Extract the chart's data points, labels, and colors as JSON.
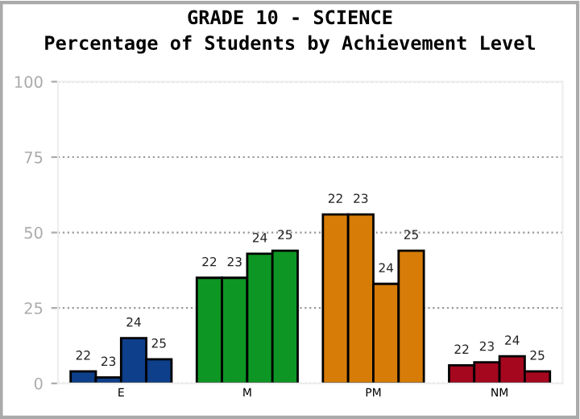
{
  "chart_data": {
    "type": "bar",
    "title": "GRADE 10 - SCIENCE",
    "subtitle": "Percentage of Students by Achievement Level",
    "categories": [
      "E",
      "M",
      "PM",
      "NM"
    ],
    "series": [
      {
        "name": "22",
        "colors": [
          "#0d3f8a",
          "#0e9624",
          "#d67c07",
          "#a5071f"
        ],
        "values": [
          4,
          35,
          56,
          6
        ]
      },
      {
        "name": "23",
        "colors": [
          "#0d3f8a",
          "#0e9624",
          "#d67c07",
          "#a5071f"
        ],
        "values": [
          2,
          35,
          56,
          7
        ]
      },
      {
        "name": "24",
        "colors": [
          "#0d3f8a",
          "#0e9624",
          "#d67c07",
          "#a5071f"
        ],
        "values": [
          15,
          43,
          33,
          9
        ]
      },
      {
        "name": "25",
        "colors": [
          "#0d3f8a",
          "#0e9624",
          "#d67c07",
          "#a5071f"
        ],
        "values": [
          8,
          44,
          44,
          4
        ]
      }
    ],
    "ylim": [
      0,
      100
    ],
    "yticks": [
      0,
      25,
      50,
      75,
      100
    ],
    "grid": "y",
    "legend": false
  }
}
